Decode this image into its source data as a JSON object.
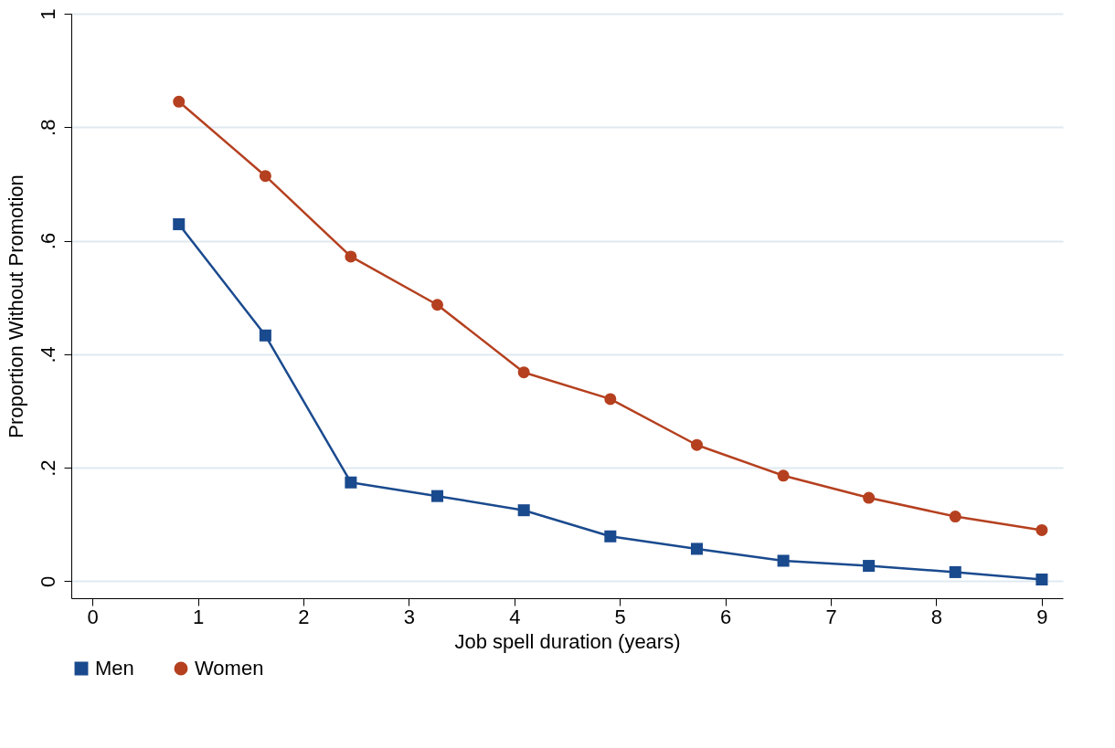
{
  "chart_data": {
    "type": "line",
    "xlabel": "Job spell duration (years)",
    "ylabel": "Proportion Without Promotion",
    "x": [
      0.82,
      1.64,
      2.45,
      3.27,
      4.09,
      4.91,
      5.73,
      6.55,
      7.36,
      8.18,
      9.0
    ],
    "series": [
      {
        "name": "Men",
        "color": "#1a4a8e",
        "marker": "square",
        "values": [
          0.629,
          0.433,
          0.174,
          0.15,
          0.125,
          0.079,
          0.057,
          0.036,
          0.027,
          0.016,
          0.003
        ]
      },
      {
        "name": "Women",
        "color": "#b5401f",
        "marker": "circle",
        "values": [
          0.845,
          0.714,
          0.572,
          0.487,
          0.368,
          0.321,
          0.24,
          0.186,
          0.147,
          0.114,
          0.09
        ]
      }
    ],
    "xlim": [
      -0.2,
      9.2
    ],
    "xticks": [
      0,
      1,
      2,
      3,
      4,
      5,
      6,
      7,
      8,
      9
    ],
    "ylim": [
      -0.03,
      1
    ],
    "yticks": [
      0,
      {
        "value": 0.2,
        "label": ".2"
      },
      {
        "value": 0.4,
        "label": ".4"
      },
      {
        "value": 0.6,
        "label": ".6"
      },
      {
        "value": 0.8,
        "label": ".8"
      },
      1
    ],
    "grid": "y",
    "legend": "bottom",
    "line_style": "solid"
  }
}
